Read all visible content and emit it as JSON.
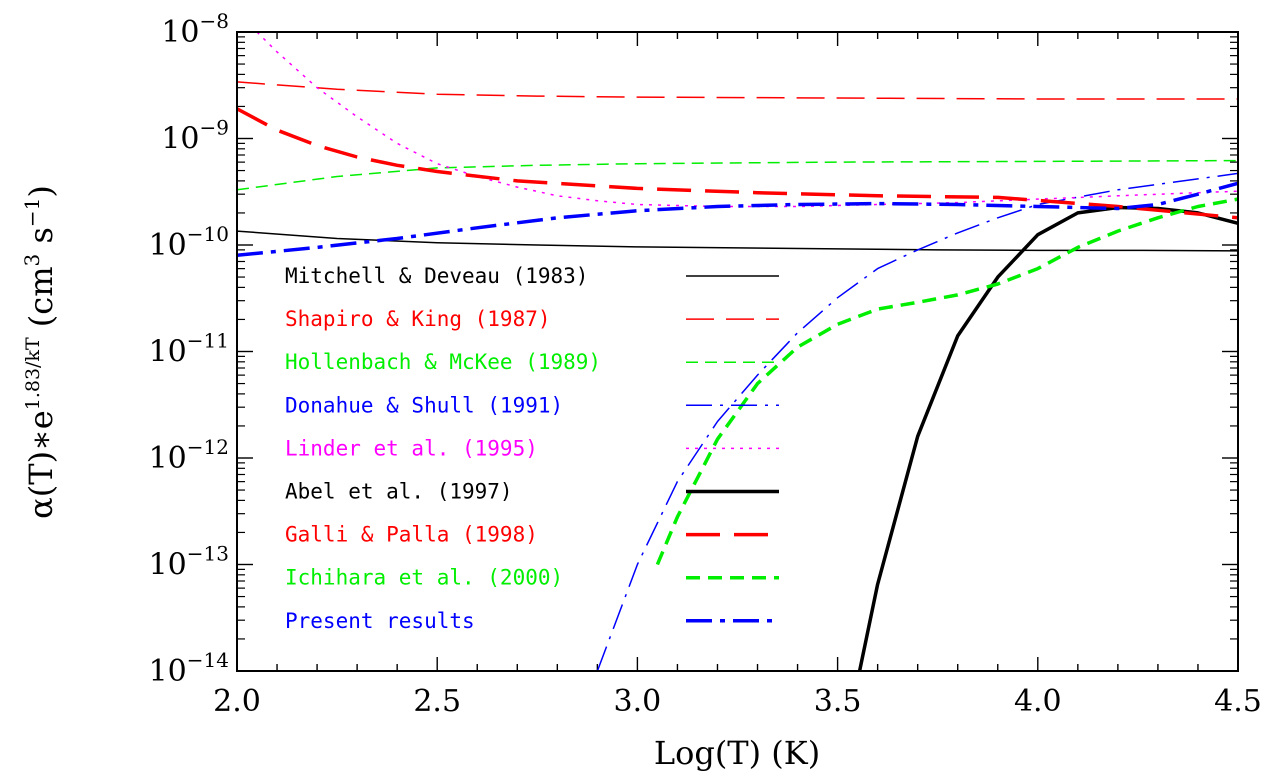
{
  "chart_data": {
    "type": "line",
    "xlabel": "Log(T) (K)",
    "ylabel": {
      "prefix": "α(T)∗e",
      "exponent": "1.83/kT",
      "units": "(cm",
      "units_exp": "3",
      "units_mid": " s",
      "units_exp2": "−1",
      "units_end": ")"
    },
    "xlim": [
      2.0,
      4.5
    ],
    "ylim_log10": [
      -14,
      -8
    ],
    "yscale": "log",
    "x_ticks": [
      {
        "value": 2.0,
        "label": "2.0"
      },
      {
        "value": 2.5,
        "label": "2.5"
      },
      {
        "value": 3.0,
        "label": "3.0"
      },
      {
        "value": 3.5,
        "label": "3.5"
      },
      {
        "value": 4.0,
        "label": "4.0"
      },
      {
        "value": 4.5,
        "label": "4.5"
      }
    ],
    "y_ticks": [
      {
        "exp": -8,
        "base": "10",
        "power": "−8"
      },
      {
        "exp": -9,
        "base": "10",
        "power": "−9"
      },
      {
        "exp": -10,
        "base": "10",
        "power": "−10"
      },
      {
        "exp": -11,
        "base": "10",
        "power": "−11"
      },
      {
        "exp": -12,
        "base": "10",
        "power": "−12"
      },
      {
        "exp": -13,
        "base": "10",
        "power": "−13"
      },
      {
        "exp": -14,
        "base": "10",
        "power": "−14"
      }
    ],
    "series": [
      {
        "name": "Mitchell & Deveau (1983)",
        "color": "#000000",
        "width": 1.5,
        "dash": "",
        "x": [
          2.0,
          2.25,
          2.5,
          2.75,
          3.0,
          3.25,
          3.5,
          3.75,
          4.0,
          4.25,
          4.5
        ],
        "y": [
          1.35e-10,
          1.15e-10,
          1.05e-10,
          1e-10,
          9.6e-11,
          9.4e-11,
          9.2e-11,
          9e-11,
          8.9e-11,
          8.9e-11,
          8.8e-11
        ]
      },
      {
        "name": "Shapiro & King (1987)",
        "color": "#ff0000",
        "width": 1.5,
        "dash": "28 12",
        "x": [
          2.0,
          2.25,
          2.5,
          2.75,
          3.0,
          3.5,
          4.0,
          4.5
        ],
        "y": [
          3.4e-09,
          2.9e-09,
          2.6e-09,
          2.5e-09,
          2.45e-09,
          2.4e-09,
          2.35e-09,
          2.35e-09
        ]
      },
      {
        "name": "Hollenbach & McKee (1989)",
        "color": "#00ee00",
        "width": 1.5,
        "dash": "12 7",
        "x": [
          2.0,
          2.25,
          2.5,
          2.75,
          3.0,
          3.5,
          4.0,
          4.5
        ],
        "y": [
          3.3e-10,
          4.4e-10,
          5.3e-10,
          5.6e-10,
          5.8e-10,
          6e-10,
          6.1e-10,
          6.2e-10
        ]
      },
      {
        "name": "Donahue & Shull (1991)",
        "color": "#0000ff",
        "width": 1.5,
        "dash": "26 8 3 8",
        "x": [
          2.9,
          3.0,
          3.1,
          3.2,
          3.3,
          3.4,
          3.5,
          3.6,
          3.7,
          3.8,
          3.9,
          4.0,
          4.2,
          4.5
        ],
        "y": [
          1e-14,
          1e-13,
          6e-13,
          2.2e-12,
          6e-12,
          1.5e-11,
          3.2e-11,
          6e-11,
          9e-11,
          1.3e-10,
          1.8e-10,
          2.4e-10,
          3.3e-10,
          4.7e-10
        ]
      },
      {
        "name": "Linder et al. (1995)",
        "color": "#ff00ff",
        "width": 1.5,
        "dash": "3 6",
        "x": [
          2.05,
          2.1,
          2.2,
          2.3,
          2.4,
          2.5,
          2.6,
          2.7,
          2.8,
          2.9,
          3.0,
          3.2,
          3.4,
          3.6,
          3.8,
          4.0,
          4.2,
          4.4,
          4.5
        ],
        "y": [
          1e-08,
          6.5e-09,
          3e-09,
          1.6e-09,
          9e-10,
          5.8e-10,
          4.4e-10,
          3.5e-10,
          2.9e-10,
          2.6e-10,
          2.4e-10,
          2.3e-10,
          2.3e-10,
          2.4e-10,
          2.5e-10,
          2.7e-10,
          2.9e-10,
          3.1e-10,
          3.2e-10
        ]
      },
      {
        "name": "Abel et al. (1997)",
        "color": "#000000",
        "width": 3.5,
        "dash": "",
        "x": [
          3.555,
          3.6,
          3.7,
          3.8,
          3.9,
          4.0,
          4.1,
          4.2,
          4.3,
          4.4,
          4.5
        ],
        "y": [
          1e-14,
          6.5e-14,
          1.6e-12,
          1.4e-11,
          5e-11,
          1.25e-10,
          2e-10,
          2.25e-10,
          2.2e-10,
          2e-10,
          1.6e-10
        ]
      },
      {
        "name": "Galli & Palla (1998)",
        "color": "#ff0000",
        "width": 3.5,
        "dash": "34 14",
        "x": [
          2.0,
          2.1,
          2.2,
          2.3,
          2.4,
          2.5,
          2.7,
          3.0,
          3.3,
          3.6,
          3.9,
          4.2,
          4.5
        ],
        "y": [
          1.9e-09,
          1.2e-09,
          8.6e-10,
          6.7e-10,
          5.6e-10,
          4.9e-10,
          4e-10,
          3.4e-10,
          3.1e-10,
          2.9e-10,
          2.8e-10,
          2.3e-10,
          1.8e-10
        ]
      },
      {
        "name": "Ichihara et al. (2000)",
        "color": "#00ee00",
        "width": 3.5,
        "dash": "14 8",
        "x": [
          3.05,
          3.1,
          3.2,
          3.3,
          3.4,
          3.5,
          3.6,
          3.7,
          3.8,
          3.9,
          4.0,
          4.1,
          4.2,
          4.3,
          4.4,
          4.5
        ],
        "y": [
          1e-13,
          2.8e-13,
          1.5e-12,
          5e-12,
          1.1e-11,
          1.8e-11,
          2.5e-11,
          2.9e-11,
          3.4e-11,
          4.3e-11,
          6e-11,
          9.5e-11,
          1.35e-10,
          1.8e-10,
          2.3e-10,
          2.7e-10
        ]
      },
      {
        "name": "Present results",
        "color": "#0000ff",
        "width": 3.5,
        "dash": "26 8 5 8",
        "x": [
          2.0,
          2.2,
          2.4,
          2.6,
          2.8,
          3.0,
          3.2,
          3.4,
          3.6,
          3.8,
          4.0,
          4.1,
          4.2,
          4.3,
          4.4,
          4.5
        ],
        "y": [
          8e-11,
          9.5e-11,
          1.15e-10,
          1.45e-10,
          1.8e-10,
          2.1e-10,
          2.3e-10,
          2.4e-10,
          2.45e-10,
          2.4e-10,
          2.3e-10,
          2.25e-10,
          2.2e-10,
          2.4e-10,
          3e-10,
          3.8e-10
        ]
      }
    ]
  }
}
